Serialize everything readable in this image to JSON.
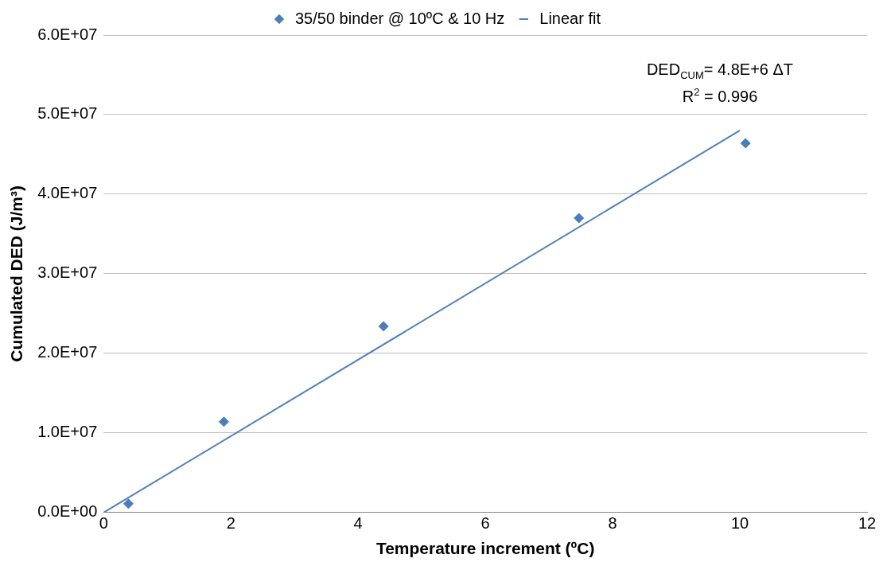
{
  "chart_data": {
    "type": "scatter",
    "xlabel": "Temperature increment (ºC)",
    "ylabel": "Cumulated DED (J/m³)",
    "series": [
      {
        "name": "35/50 binder @ 10ºC & 10 Hz",
        "color": "#4a7ebb",
        "x": [
          0.39,
          1.89,
          4.4,
          7.47,
          10.09
        ],
        "values": [
          1100000.0,
          11400000.0,
          23400000.0,
          37000000.0,
          46400000.0
        ]
      },
      {
        "name": "Linear fit",
        "type": "line",
        "marker": "none",
        "color": "#4f81bd",
        "x": [
          0,
          10
        ],
        "values": [
          0,
          48000000.0
        ]
      }
    ],
    "xlim": [
      0,
      12
    ],
    "xticks": [
      0,
      2,
      4,
      6,
      8,
      10,
      12
    ],
    "ylim": [
      0,
      60000000.0
    ],
    "yticks": [
      {
        "value": 0,
        "label": "0.0E+00"
      },
      {
        "value": 10000000.0,
        "label": "1.0E+07"
      },
      {
        "value": 20000000.0,
        "label": "2.0E+07"
      },
      {
        "value": 30000000.0,
        "label": "3.0E+07"
      },
      {
        "value": 40000000.0,
        "label": "4.0E+07"
      },
      {
        "value": 50000000.0,
        "label": "5.0E+07"
      },
      {
        "value": 60000000.0,
        "label": "6.0E+07"
      }
    ],
    "annotations": [
      "DED$_{CUM}$= 4.8E+6 ΔT",
      "R$^{2}$ = 0.996"
    ],
    "grid": "y",
    "legend": "top",
    "marker": "diamond",
    "line_style": "solid"
  }
}
